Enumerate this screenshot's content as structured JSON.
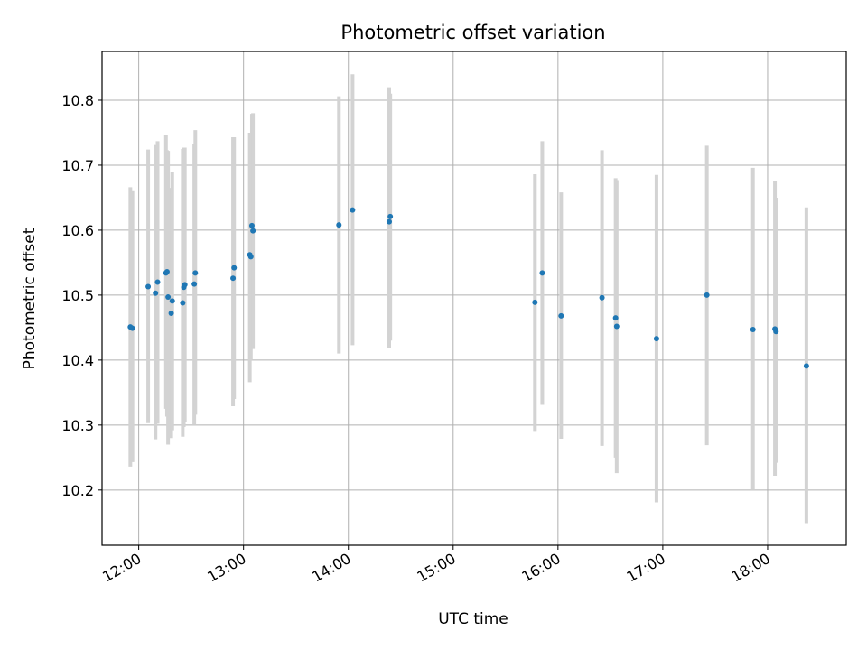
{
  "chart_data": {
    "type": "scatter",
    "title": "Photometric offset variation",
    "xlabel": "UTC time",
    "ylabel": "Photometric offset",
    "x_tick_labels": [
      "12:00",
      "13:00",
      "14:00",
      "15:00",
      "16:00",
      "17:00",
      "18:00"
    ],
    "x_ticks_hours": [
      12,
      13,
      14,
      15,
      16,
      17,
      18
    ],
    "y_ticks": [
      10.2,
      10.3,
      10.4,
      10.5,
      10.6,
      10.7,
      10.8
    ],
    "xlim_hours": [
      11.65,
      18.75
    ],
    "ylim": [
      10.115,
      10.875
    ],
    "grid": true,
    "marker_color": "#1f77b4",
    "errorbar_color": "#d3d3d3",
    "points": [
      {
        "t": 11.92,
        "y": 10.451,
        "lo": 10.236,
        "hi": 10.666
      },
      {
        "t": 11.94,
        "y": 10.449,
        "lo": 10.243,
        "hi": 10.66
      },
      {
        "t": 12.09,
        "y": 10.513,
        "lo": 10.303,
        "hi": 10.724
      },
      {
        "t": 12.16,
        "y": 10.503,
        "lo": 10.278,
        "hi": 10.731
      },
      {
        "t": 12.18,
        "y": 10.52,
        "lo": 10.302,
        "hi": 10.737
      },
      {
        "t": 12.26,
        "y": 10.534,
        "lo": 10.325,
        "hi": 10.747
      },
      {
        "t": 12.27,
        "y": 10.536,
        "lo": 10.313,
        "hi": 10.723
      },
      {
        "t": 12.28,
        "y": 10.497,
        "lo": 10.27,
        "hi": 10.722
      },
      {
        "t": 12.31,
        "y": 10.472,
        "lo": 10.28,
        "hi": 10.665
      },
      {
        "t": 12.32,
        "y": 10.491,
        "lo": 10.292,
        "hi": 10.69
      },
      {
        "t": 12.42,
        "y": 10.488,
        "lo": 10.282,
        "hi": 10.725
      },
      {
        "t": 12.43,
        "y": 10.512,
        "lo": 10.297,
        "hi": 10.727
      },
      {
        "t": 12.44,
        "y": 10.516,
        "lo": 10.305,
        "hi": 10.727
      },
      {
        "t": 12.53,
        "y": 10.517,
        "lo": 10.3,
        "hi": 10.733
      },
      {
        "t": 12.54,
        "y": 10.534,
        "lo": 10.316,
        "hi": 10.754
      },
      {
        "t": 12.9,
        "y": 10.526,
        "lo": 10.329,
        "hi": 10.743
      },
      {
        "t": 12.91,
        "y": 10.542,
        "lo": 10.34,
        "hi": 10.743
      },
      {
        "t": 13.06,
        "y": 10.562,
        "lo": 10.366,
        "hi": 10.75
      },
      {
        "t": 13.07,
        "y": 10.559,
        "lo": 10.4,
        "hi": 10.725
      },
      {
        "t": 13.08,
        "y": 10.607,
        "lo": 10.44,
        "hi": 10.779
      },
      {
        "t": 13.09,
        "y": 10.599,
        "lo": 10.417,
        "hi": 10.78
      },
      {
        "t": 13.91,
        "y": 10.608,
        "lo": 10.41,
        "hi": 10.806
      },
      {
        "t": 14.04,
        "y": 10.631,
        "lo": 10.423,
        "hi": 10.84
      },
      {
        "t": 14.39,
        "y": 10.613,
        "lo": 10.418,
        "hi": 10.82
      },
      {
        "t": 14.4,
        "y": 10.621,
        "lo": 10.43,
        "hi": 10.81
      },
      {
        "t": 15.78,
        "y": 10.489,
        "lo": 10.291,
        "hi": 10.686
      },
      {
        "t": 15.85,
        "y": 10.534,
        "lo": 10.331,
        "hi": 10.737
      },
      {
        "t": 16.03,
        "y": 10.468,
        "lo": 10.279,
        "hi": 10.658
      },
      {
        "t": 16.42,
        "y": 10.496,
        "lo": 10.268,
        "hi": 10.723
      },
      {
        "t": 16.55,
        "y": 10.465,
        "lo": 10.25,
        "hi": 10.68
      },
      {
        "t": 16.56,
        "y": 10.452,
        "lo": 10.226,
        "hi": 10.677
      },
      {
        "t": 16.94,
        "y": 10.433,
        "lo": 10.181,
        "hi": 10.685
      },
      {
        "t": 17.42,
        "y": 10.5,
        "lo": 10.269,
        "hi": 10.73
      },
      {
        "t": 17.86,
        "y": 10.447,
        "lo": 10.2,
        "hi": 10.696
      },
      {
        "t": 18.07,
        "y": 10.448,
        "lo": 10.222,
        "hi": 10.675
      },
      {
        "t": 18.08,
        "y": 10.444,
        "lo": 10.242,
        "hi": 10.65
      },
      {
        "t": 18.37,
        "y": 10.391,
        "lo": 10.149,
        "hi": 10.635
      }
    ]
  }
}
